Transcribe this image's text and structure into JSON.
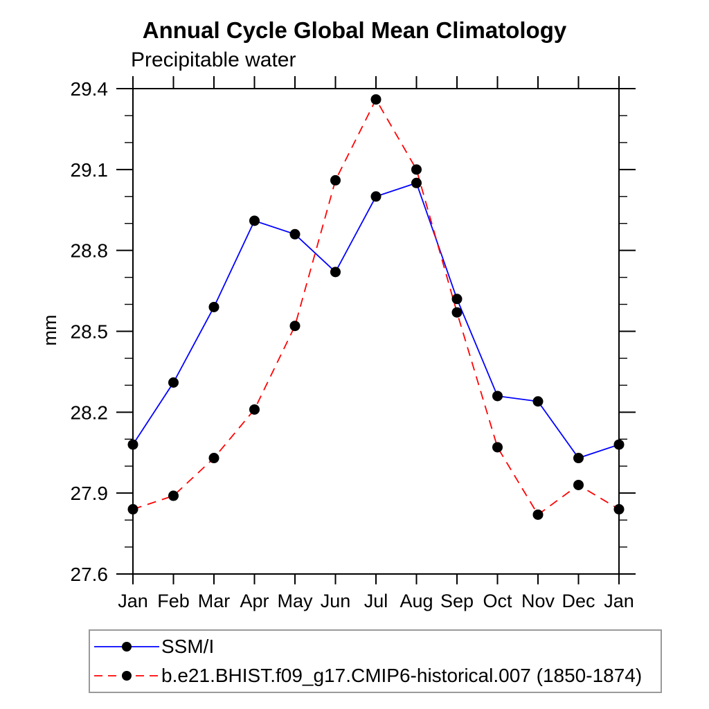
{
  "chart_data": {
    "type": "line",
    "title": "Annual Cycle Global Mean Climatology",
    "subtitle": "Precipitable water",
    "ylabel": "mm",
    "xlabel": "",
    "categories": [
      "Jan",
      "Feb",
      "Mar",
      "Apr",
      "May",
      "Jun",
      "Jul",
      "Aug",
      "Sep",
      "Oct",
      "Nov",
      "Dec",
      "Jan"
    ],
    "series": [
      {
        "name": "SSM/I",
        "color": "#0000ff",
        "line_style": "solid",
        "marker": "filled-circle",
        "marker_color": "#000000",
        "values": [
          28.08,
          28.31,
          28.59,
          28.91,
          28.86,
          28.72,
          29.0,
          29.05,
          28.62,
          28.26,
          28.24,
          28.03,
          28.08
        ]
      },
      {
        "name": "b.e21.BHIST.f09_g17.CMIP6-historical.007 (1850-1874)",
        "color": "#ff0000",
        "line_style": "dashed",
        "marker": "filled-circle",
        "marker_color": "#000000",
        "values": [
          27.84,
          27.89,
          28.03,
          28.21,
          28.52,
          29.06,
          29.36,
          29.1,
          28.57,
          28.07,
          27.82,
          27.93,
          27.84
        ]
      }
    ],
    "ylim": [
      27.6,
      29.4
    ],
    "ytick_major_values": [
      27.6,
      27.9,
      28.2,
      28.5,
      28.8,
      29.1,
      29.4
    ],
    "ytick_labels": [
      "27.6",
      "27.9",
      "28.2",
      "28.5",
      "28.8",
      "29.1",
      "29.4"
    ],
    "ytick_minor_step": 0.1,
    "grid": false,
    "legend_position": "bottom",
    "axis_color": "#000000",
    "background_color": "#ffffff"
  }
}
